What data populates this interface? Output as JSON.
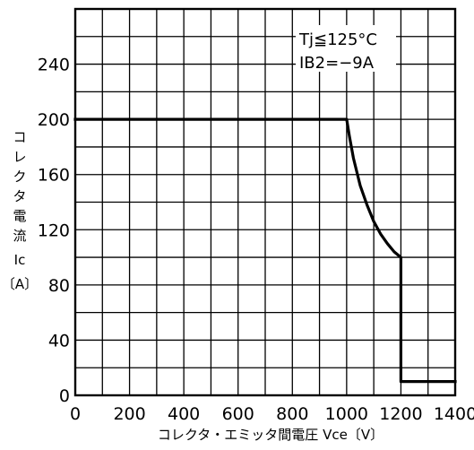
{
  "chart_data": {
    "type": "line",
    "xlabel": "コレクタ・エミッタ間電圧 Vce〔V〕",
    "ylabel_lines": [
      "コ",
      "レ",
      "ク",
      "タ",
      "電",
      "流",
      "Ic",
      "〔A〕"
    ],
    "xlim": [
      0,
      1400
    ],
    "ylim": [
      0,
      280
    ],
    "x_ticks": [
      0,
      200,
      400,
      600,
      800,
      1000,
      1200,
      1400
    ],
    "x_tick_labels": [
      "0",
      "200",
      "400",
      "600",
      "800",
      "1000",
      "1200",
      "1400"
    ],
    "y_ticks": [
      0,
      40,
      80,
      120,
      160,
      200,
      240
    ],
    "y_tick_labels": [
      "0",
      "40",
      "80",
      "120",
      "160",
      "200",
      "240"
    ],
    "x_grid_step": 100,
    "y_grid_step": 20,
    "grid": true,
    "annotations": [
      "Tj≦125°C",
      "IB2=−9A"
    ],
    "series": [
      {
        "color": "#000000",
        "points": [
          {
            "x": 0,
            "y": 200
          },
          {
            "x": 1000,
            "y": 200
          },
          {
            "x": 1010,
            "y": 188
          },
          {
            "x": 1025,
            "y": 172
          },
          {
            "x": 1050,
            "y": 152
          },
          {
            "x": 1075,
            "y": 138
          },
          {
            "x": 1100,
            "y": 126
          },
          {
            "x": 1125,
            "y": 117
          },
          {
            "x": 1150,
            "y": 110
          },
          {
            "x": 1175,
            "y": 104
          },
          {
            "x": 1200,
            "y": 100
          },
          {
            "x": 1200,
            "y": 10
          },
          {
            "x": 1400,
            "y": 10
          }
        ]
      }
    ]
  }
}
